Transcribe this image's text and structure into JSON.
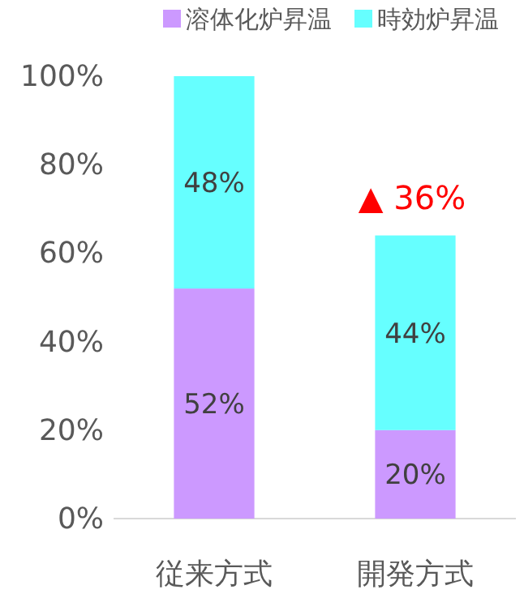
{
  "chart_data": {
    "type": "bar",
    "stacked": true,
    "categories": [
      "従来方式",
      "開発方式"
    ],
    "series": [
      {
        "name": "溶体化炉昇温",
        "color": "#cc99ff",
        "values": [
          52,
          20
        ],
        "value_labels": [
          "52%",
          "20%"
        ]
      },
      {
        "name": "時効炉昇温",
        "color": "#66ffff",
        "values": [
          48,
          44
        ],
        "value_labels": [
          "48%",
          "44%"
        ]
      }
    ],
    "ylim": [
      0,
      100
    ],
    "yticks": [
      {
        "value": 0,
        "label": "0%"
      },
      {
        "value": 20,
        "label": "20%"
      },
      {
        "value": 40,
        "label": "40%"
      },
      {
        "value": 60,
        "label": "60%"
      },
      {
        "value": 80,
        "label": "80%"
      },
      {
        "value": 100,
        "label": "100%"
      }
    ],
    "legend": "top",
    "annotations": [
      "▲ 36%"
    ]
  }
}
